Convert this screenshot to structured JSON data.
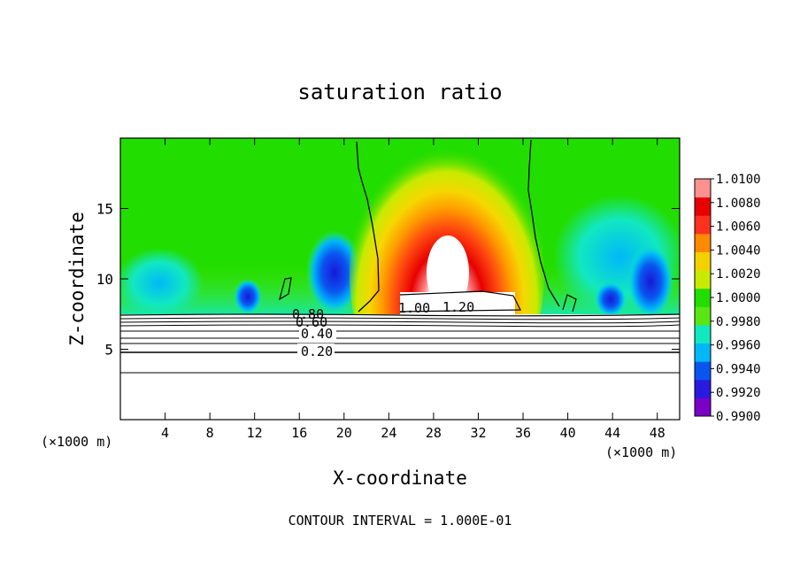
{
  "chart_data": {
    "type": "heatmap",
    "title": "saturation ratio",
    "xlabel": "X-coordinate",
    "ylabel": "Z-coordinate",
    "x_unit_left": "(×1000 m)",
    "x_unit_right": "(×1000 m)",
    "xlim": [
      0,
      50
    ],
    "ylim": [
      0,
      20
    ],
    "x_ticks": [
      4,
      8,
      12,
      16,
      20,
      24,
      28,
      32,
      36,
      40,
      44,
      48
    ],
    "y_ticks": [
      5,
      10,
      15
    ],
    "colorbar": {
      "min": 0.99,
      "max": 1.01,
      "tick_labels": [
        "1.0100",
        "1.0080",
        "1.0060",
        "1.0040",
        "1.0020",
        "1.0000",
        "0.9980",
        "0.9960",
        "0.9940",
        "0.9920",
        "0.9900"
      ],
      "colors": [
        "#7a00c8",
        "#2a1ae0",
        "#0a55f0",
        "#00b8f8",
        "#12e8c0",
        "#5ae612",
        "#22dd00",
        "#c8ea00",
        "#f5d000",
        "#ff8a00",
        "#ff3020",
        "#e80000",
        "#ff9090"
      ]
    },
    "contour_labels": [
      "0.20",
      "0.40",
      "0.60",
      "0.80",
      "1.00",
      "1.20"
    ],
    "footer": "CONTOUR INTERVAL = 1.000E-01"
  }
}
